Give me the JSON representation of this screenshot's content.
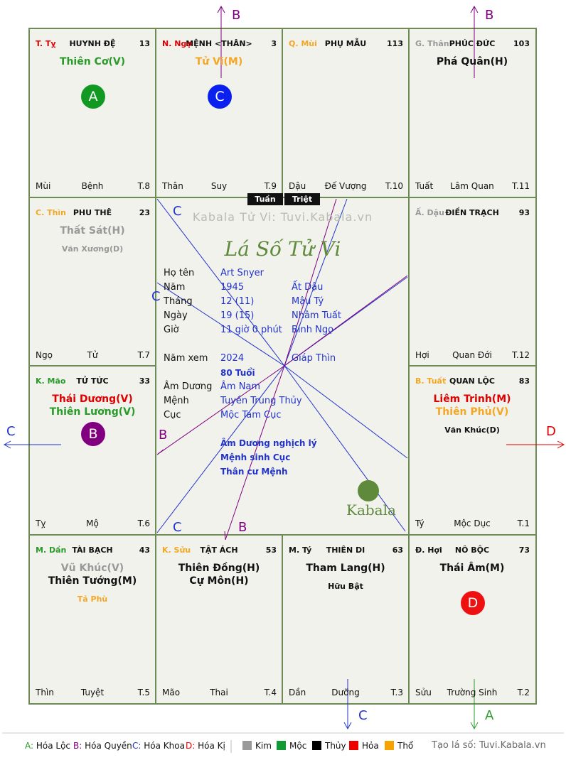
{
  "palaces": [
    {
      "id": "ty",
      "fate": "T. Tỵ",
      "fate_color": "#e00000",
      "name": "HUYNH ĐỆ",
      "num": "13",
      "stars": [
        {
          "text": "Thiên Cơ(V)",
          "color": "#2a9a2a",
          "size": "major"
        }
      ],
      "bl": "Mùi",
      "bm": "Bệnh",
      "br": "T.8",
      "badge": "A",
      "badge_color": "#119922"
    },
    {
      "id": "ngo",
      "fate": "N. Ngọ",
      "fate_color": "#e00000",
      "name": "MỆNH <THÂN>",
      "num": "3",
      "stars": [
        {
          "text": "Tử Vi(M)",
          "color": "#f5a623",
          "size": "major"
        }
      ],
      "bl": "Thân",
      "bm": "Suy",
      "br": "T.9",
      "badge": "C",
      "badge_color": "#0a20ee"
    },
    {
      "id": "mui",
      "fate": "Q. Mùi",
      "fate_color": "#f5a623",
      "name": "PHỤ MẪU",
      "num": "113",
      "stars": [],
      "bl": "Dậu",
      "bm": "Đế Vượng",
      "br": "T.10"
    },
    {
      "id": "than",
      "fate": "G. Thân",
      "fate_color": "#999999",
      "name": "PHÚC ĐỨC",
      "num": "103",
      "stars": [
        {
          "text": "Phá Quân(H)",
          "color": "#111111",
          "size": "major"
        }
      ],
      "bl": "Tuất",
      "bm": "Lâm Quan",
      "br": "T.11"
    },
    {
      "id": "thin",
      "fate": "C. Thìn",
      "fate_color": "#f5a623",
      "name": "PHU THÊ",
      "num": "23",
      "stars": [
        {
          "text": "Thất Sát(H)",
          "color": "#999999",
          "size": "major"
        },
        {
          "text": "Văn Xương(D)",
          "color": "#999999",
          "size": "minor"
        }
      ],
      "bl": "Ngọ",
      "bm": "Tử",
      "br": "T.7"
    },
    {
      "id": "dau",
      "fate": "Ấ. Dậu",
      "fate_color": "#999999",
      "name": "ĐIỀN TRẠCH",
      "num": "93",
      "stars": [],
      "bl": "Hợi",
      "bm": "Quan Đới",
      "br": "T.12"
    },
    {
      "id": "mao",
      "fate": "K. Mão",
      "fate_color": "#2a9a2a",
      "name": "TỬ TỨC",
      "num": "33",
      "stars": [
        {
          "text": "Thái Dương(V)",
          "color": "#e00000",
          "size": "major"
        },
        {
          "text": "Thiên Lương(V)",
          "color": "#2a9a2a",
          "size": "major"
        }
      ],
      "bl": "Tỵ",
      "bm": "Mộ",
      "br": "T.6",
      "badge": "B",
      "badge_color": "#800080"
    },
    {
      "id": "tuat",
      "fate": "B. Tuất",
      "fate_color": "#f5a623",
      "name": "QUAN LỘC",
      "num": "83",
      "stars": [
        {
          "text": "Liêm Trinh(M)",
          "color": "#e00000",
          "size": "major"
        },
        {
          "text": "Thiên Phủ(V)",
          "color": "#f5a623",
          "size": "major"
        },
        {
          "text": "Văn Khúc(D)",
          "color": "#111111",
          "size": "minor"
        }
      ],
      "bl": "Tý",
      "bm": "Mộc Dục",
      "br": "T.1"
    },
    {
      "id": "dan",
      "fate": "M. Dần",
      "fate_color": "#2a9a2a",
      "name": "TÀI BẠCH",
      "num": "43",
      "stars": [
        {
          "text": "Vũ Khúc(V)",
          "color": "#999999",
          "size": "major"
        },
        {
          "text": "Thiên Tướng(M)",
          "color": "#111111",
          "size": "major"
        },
        {
          "text": "Tả Phù",
          "color": "#f5a623",
          "size": "minor"
        }
      ],
      "bl": "Thìn",
      "bm": "Tuyệt",
      "br": "T.5"
    },
    {
      "id": "suu",
      "fate": "K. Sửu",
      "fate_color": "#f5a623",
      "name": "TẬT ÁCH",
      "num": "53",
      "stars": [
        {
          "text": "Thiên Đồng(H)",
          "color": "#111111",
          "size": "major"
        },
        {
          "text": "Cự Môn(H)",
          "color": "#111111",
          "size": "major"
        }
      ],
      "bl": "Mão",
      "bm": "Thai",
      "br": "T.4"
    },
    {
      "id": "tyy",
      "fate": "M. Tý",
      "fate_color": "#111111",
      "name": "THIÊN DI",
      "num": "63",
      "stars": [
        {
          "text": "Tham Lang(H)",
          "color": "#111111",
          "size": "major"
        },
        {
          "text": "Hữu Bật",
          "color": "#111111",
          "size": "minor"
        }
      ],
      "bl": "Dần",
      "bm": "Dưỡng",
      "br": "T.3"
    },
    {
      "id": "hoi",
      "fate": "Đ. Hợi",
      "fate_color": "#111111",
      "name": "NÔ BỘC",
      "num": "73",
      "stars": [
        {
          "text": "Thái Âm(M)",
          "color": "#111111",
          "size": "major"
        }
      ],
      "bl": "Sửu",
      "bm": "Trường Sinh",
      "br": "T.2",
      "badge": "D",
      "badge_color": "#ee1111"
    }
  ],
  "center": {
    "tags": {
      "tuan": "Tuần",
      "triet": "Triệt"
    },
    "watermark": "Kabala Tử Vi: Tuvi.Kabala.vn",
    "logo": "Lá Số Tử Vi",
    "rows": [
      {
        "label": "Họ tên",
        "v1": "Art Snyer",
        "v2": ""
      },
      {
        "label": "Năm",
        "v1": "1945",
        "v2": "Ất Dậu"
      },
      {
        "label": "Tháng",
        "v1": "12 (11)",
        "v2": "Mậu Tý"
      },
      {
        "label": "Ngày",
        "v1": "19 (15)",
        "v2": "Nhâm Tuất"
      },
      {
        "label": "Giờ",
        "v1": "11 giờ 0 phút",
        "v2": "Bính Ngọ"
      }
    ],
    "year_view": {
      "label": "Năm xem",
      "v1": "2024",
      "v2": "Giáp Thìn",
      "age": "80 Tuổi"
    },
    "rows2": [
      {
        "label": "Âm Dương",
        "v1": "Âm Nam"
      },
      {
        "label": "Mệnh",
        "v1": "Tuyền Trung Thủy"
      },
      {
        "label": "Cục",
        "v1": "Mộc Tam Cục"
      }
    ],
    "notes": [
      "Âm Dương nghịch lý",
      "Mệnh sinh Cục",
      "Thân cư Mệnh"
    ],
    "brand": "Kabala"
  },
  "arrows": {
    "top_left": "B",
    "top_right": "B",
    "left": "C",
    "right": "D",
    "bottom_mid": "C",
    "bottom_right": "A",
    "inner": {
      "c1": "C",
      "c2": "C",
      "b1": "B",
      "c3": "C",
      "b2": "B"
    }
  },
  "legend": {
    "mutations": [
      {
        "key": "A:",
        "text": "Hóa Lộc",
        "color": "#2a9a2a"
      },
      {
        "key": "B:",
        "text": "Hóa Quyền",
        "color": "#800080"
      },
      {
        "key": "C:",
        "text": "Hóa Khoa",
        "color": "#2233cc"
      },
      {
        "key": "D:",
        "text": "Hóa Kị",
        "color": "#e00000"
      }
    ],
    "elements": [
      {
        "text": "Kim",
        "color": "#999999"
      },
      {
        "text": "Mộc",
        "color": "#119933"
      },
      {
        "text": "Thủy",
        "color": "#000000"
      },
      {
        "text": "Hỏa",
        "color": "#ee0000"
      },
      {
        "text": "Thổ",
        "color": "#f5a300"
      }
    ],
    "credit": "Tạo lá số: Tuvi.Kabala.vn"
  }
}
